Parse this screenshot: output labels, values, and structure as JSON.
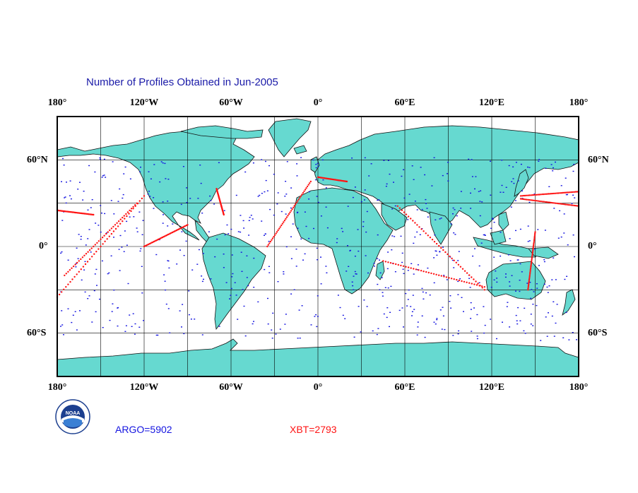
{
  "title": "Number of Profiles Obtained in Jun-2005",
  "map": {
    "projection": "equirectangular",
    "lon_range": [
      -180,
      180
    ],
    "lat_range": [
      -90,
      90
    ],
    "top_ticks": [
      "180°",
      "120°W",
      "60°W",
      "0°",
      "60°E",
      "120°E",
      "180°"
    ],
    "bottom_ticks": [
      "180°",
      "120°W",
      "60°W",
      "0°",
      "60°E",
      "120°E",
      "180°"
    ],
    "left_ticks": [
      "60°N",
      "0°",
      "60°S"
    ],
    "right_ticks": [
      "60°N",
      "0°",
      "60°S"
    ],
    "land_color": "#66d9d0",
    "ocean_color": "#ffffff",
    "argo_color": "#1414e0",
    "xbt_color": "#ff1414"
  },
  "legend": {
    "argo": "ARGO=5902",
    "xbt": "XBT=2793"
  },
  "logo": {
    "icon": "noaa-logo-icon",
    "text": "NOAA"
  }
}
